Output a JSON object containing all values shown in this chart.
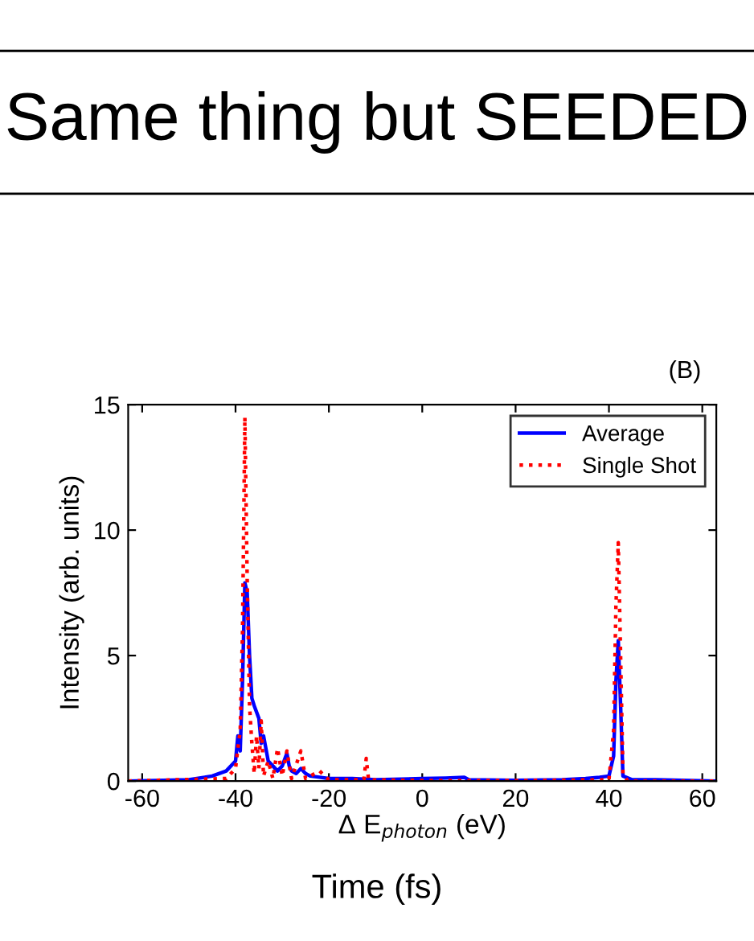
{
  "chart_data": {
    "type": "line",
    "title": "Same thing but SEEDED",
    "xlabel": "Δ E$_{photon}$ (eV)",
    "ylabel": "Intensity (arb. units)",
    "annotations": [
      "(B)",
      "Time (fs)"
    ],
    "xlim": [
      -63,
      63
    ],
    "ylim": [
      0,
      15
    ],
    "xticks": [
      -60,
      -40,
      -20,
      0,
      20,
      40,
      60
    ],
    "yticks": [
      0,
      5,
      10,
      15
    ],
    "grid": false,
    "legend": "top right",
    "series": [
      {
        "name": "Average",
        "color": "#0000ff",
        "line_style": "solid",
        "x": [
          -63,
          -50,
          -45,
          -42,
          -40,
          -39.5,
          -39,
          -38.5,
          -38,
          -37.5,
          -37,
          -36.5,
          -36,
          -35,
          -34.5,
          -34,
          -33,
          -32,
          -31,
          -30,
          -29,
          -28.5,
          -28,
          -27,
          -26,
          -25,
          -24,
          -22,
          -20,
          -15,
          -10,
          0,
          5,
          9,
          10,
          20,
          30,
          35,
          38,
          40,
          41,
          41.5,
          42,
          42.5,
          43,
          45,
          50,
          63
        ],
        "values": [
          0,
          0.05,
          0.2,
          0.4,
          0.8,
          1.8,
          1.2,
          4,
          7.9,
          7.5,
          5,
          3.3,
          3,
          2.5,
          1.5,
          1.8,
          0.8,
          0.6,
          0.4,
          0.6,
          1.1,
          0.6,
          0.4,
          0.3,
          0.5,
          0.3,
          0.2,
          0.15,
          0.1,
          0.1,
          0.05,
          0.1,
          0.12,
          0.15,
          0.05,
          0.03,
          0.05,
          0.1,
          0.15,
          0.2,
          1,
          4,
          5.6,
          3,
          0.2,
          0.05,
          0.05,
          0
        ]
      },
      {
        "name": "Single Shot",
        "color": "#ff0000",
        "line_style": "dotted",
        "x": [
          -63,
          -42,
          -40,
          -39.5,
          -39,
          -38.5,
          -38,
          -37.5,
          -37,
          -36.5,
          -36,
          -35.5,
          -35,
          -34.5,
          -34,
          -33,
          -32,
          -31,
          -30,
          -29,
          -28,
          -26,
          -25,
          -22,
          -20,
          -12.5,
          -12,
          -11.5,
          0,
          20,
          40,
          41,
          41.5,
          42,
          42.5,
          43,
          44,
          63
        ],
        "values": [
          0,
          0.1,
          0.5,
          1.3,
          2,
          6,
          14.5,
          8,
          3,
          1.5,
          0.3,
          1.8,
          0.5,
          2.4,
          0.2,
          0.8,
          0.1,
          1.3,
          0.2,
          1.2,
          0.1,
          1.2,
          0.1,
          0.4,
          0.05,
          0.05,
          0.9,
          0.05,
          0.02,
          0.02,
          0.05,
          2,
          7,
          9.5,
          5,
          0.3,
          0,
          0
        ]
      }
    ]
  }
}
